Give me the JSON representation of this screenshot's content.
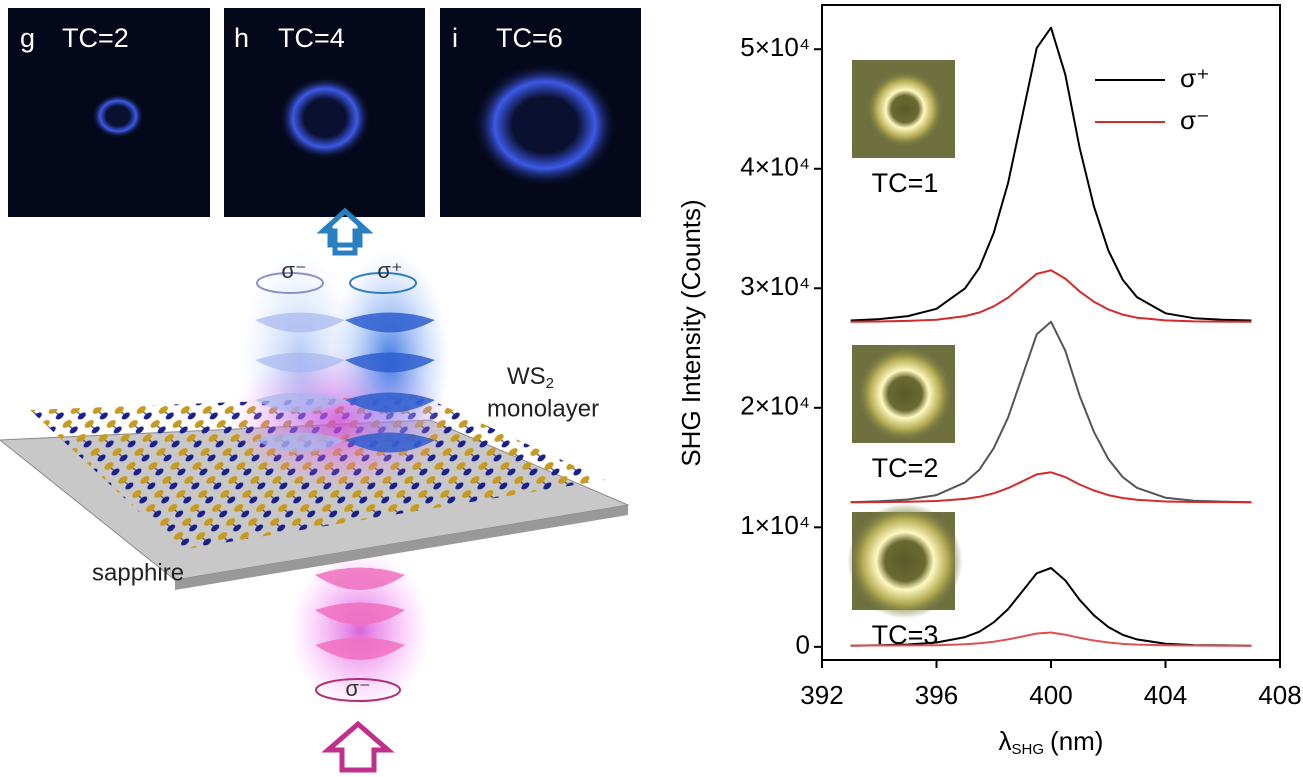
{
  "illustration": {
    "panels": [
      {
        "letter": "g",
        "label": "TC=2"
      },
      {
        "letter": "h",
        "label": "TC=4"
      },
      {
        "letter": "i",
        "label": "TC=6"
      }
    ],
    "beam_minus": "σ⁻",
    "beam_plus": "σ⁺",
    "input_beam": "σ⁻",
    "material": "WS",
    "material_sub": "2",
    "material_line2": "monolayer",
    "substrate": "sapphire"
  },
  "chart_data": {
    "type": "line",
    "ylabel": "SHG Intensity (Counts)",
    "xlabel": "λ",
    "xlabel_sub": "SHG",
    "xlabel_unit": "(nm)",
    "x": [
      393,
      394,
      395,
      396,
      397,
      397.5,
      398,
      398.5,
      399,
      399.5,
      400,
      400.5,
      401,
      401.5,
      402,
      402.5,
      403,
      404,
      405,
      406,
      407
    ],
    "series": [
      {
        "color": "#000000",
        "values": [
          27300,
          27420,
          27670,
          28280,
          30000,
          31710,
          34650,
          38820,
          44450,
          50090,
          51800,
          47880,
          41760,
          36860,
          33180,
          30730,
          29260,
          27910,
          27500,
          27370,
          27300
        ]
      },
      {
        "color": "#d42a2a",
        "values": [
          27200,
          27220,
          27270,
          27370,
          27670,
          27970,
          28490,
          29220,
          30210,
          31200,
          31500,
          30810,
          29740,
          28880,
          28230,
          27800,
          27540,
          27310,
          27230,
          27210,
          27200
        ]
      },
      {
        "color": "#555555",
        "values": [
          12100,
          12180,
          12330,
          12700,
          13760,
          14820,
          16630,
          19200,
          22670,
          26140,
          27200,
          24780,
          21010,
          17990,
          15720,
          14210,
          13310,
          12480,
          12220,
          12150,
          12100
        ]
      },
      {
        "color": "#d42a2a",
        "values": [
          12100,
          12110,
          12140,
          12200,
          12380,
          12550,
          12850,
          13280,
          13850,
          14430,
          14600,
          14200,
          13580,
          13080,
          12700,
          12450,
          12300,
          12160,
          12120,
          12110,
          12100
        ]
      },
      {
        "color": "#000000",
        "values": [
          100,
          130,
          200,
          360,
          820,
          1270,
          2050,
          3160,
          4650,
          6150,
          6600,
          5560,
          3940,
          2640,
          1660,
          1010,
          620,
          260,
          150,
          120,
          100
        ]
      },
      {
        "color": "#e05050",
        "values": [
          100,
          110,
          120,
          140,
          220,
          300,
          430,
          620,
          870,
          1120,
          1200,
          1020,
          750,
          530,
          360,
          250,
          190,
          130,
          110,
          100,
          100
        ]
      }
    ],
    "legend": [
      {
        "label": "σ⁺",
        "color": "#000000"
      },
      {
        "label": "σ⁻",
        "color": "#d42a2a"
      }
    ],
    "insets": [
      "TC=1",
      "TC=2",
      "TC=3"
    ],
    "xlim": [
      392,
      408
    ],
    "xticks": [
      392,
      396,
      400,
      404,
      408
    ],
    "ylim": [
      -1100,
      53700
    ],
    "yticks": [
      0,
      {
        "value": 10000,
        "label": "1×10⁴"
      },
      {
        "value": 20000,
        "label": "2×10⁴"
      },
      {
        "value": 30000,
        "label": "3×10⁴"
      },
      {
        "value": 40000,
        "label": "4×10⁴"
      },
      {
        "value": 50000,
        "label": "5×10⁴"
      }
    ]
  }
}
